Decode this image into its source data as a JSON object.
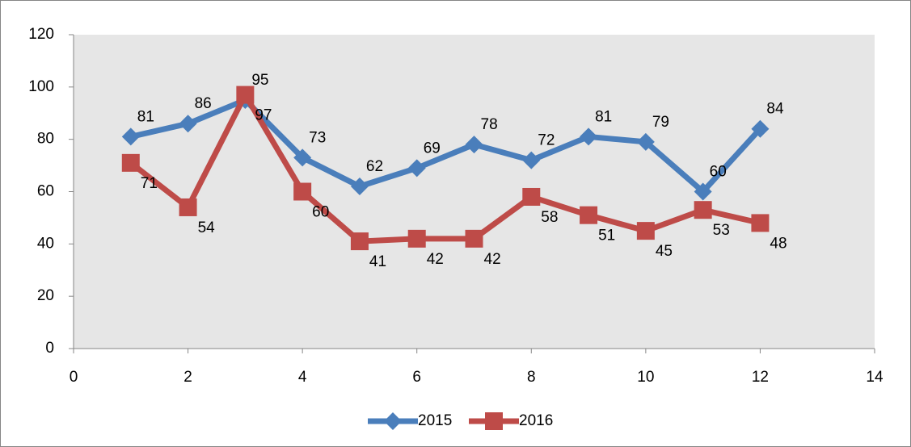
{
  "chart_data": {
    "type": "line",
    "x": [
      1,
      2,
      3,
      4,
      5,
      6,
      7,
      8,
      9,
      10,
      11,
      12
    ],
    "series": [
      {
        "name": "2015",
        "color": "#4a7ebb",
        "marker": "diamond",
        "values": [
          81,
          86,
          95,
          73,
          62,
          69,
          78,
          72,
          81,
          79,
          60,
          84
        ]
      },
      {
        "name": "2016",
        "color": "#be4b48",
        "marker": "square",
        "values": [
          71,
          54,
          97,
          60,
          41,
          42,
          42,
          58,
          51,
          45,
          53,
          48
        ]
      }
    ],
    "xlim": [
      0,
      14
    ],
    "xticks": [
      0,
      2,
      4,
      6,
      8,
      10,
      12,
      14
    ],
    "ylim": [
      0,
      120
    ],
    "yticks": [
      0,
      20,
      40,
      60,
      80,
      100,
      120
    ],
    "legend": "bottom",
    "data_labels": true
  }
}
